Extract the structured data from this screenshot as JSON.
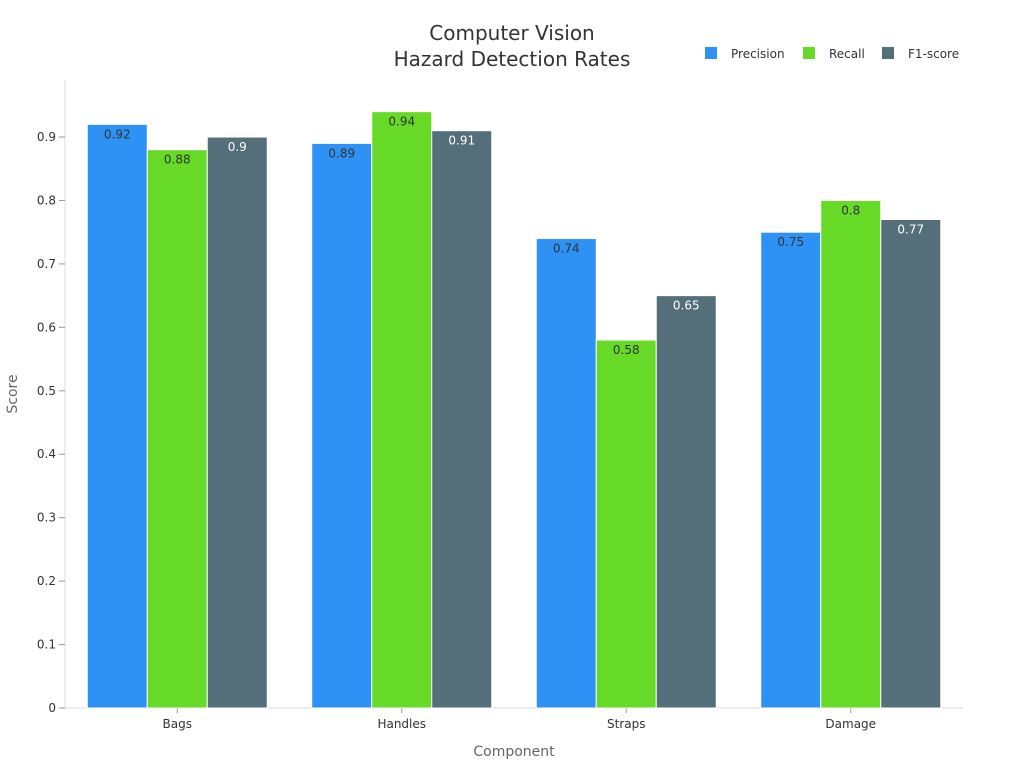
{
  "chart_data": {
    "type": "bar",
    "title": [
      "Computer Vision",
      "Hazard Detection Rates"
    ],
    "xlabel": "Component",
    "ylabel": "Score",
    "categories": [
      "Bags",
      "Handles",
      "Straps",
      "Damage"
    ],
    "series": [
      {
        "name": "Precision",
        "color": "#2e91f4",
        "label_color": "#333333",
        "values": [
          0.92,
          0.89,
          0.74,
          0.75
        ]
      },
      {
        "name": "Recall",
        "color": "#66da26",
        "label_color": "#333333",
        "values": [
          0.88,
          0.94,
          0.58,
          0.8
        ]
      },
      {
        "name": "F1-score",
        "color": "#546e7a",
        "label_color": "#ffffff",
        "values": [
          0.9,
          0.91,
          0.65,
          0.77
        ]
      }
    ],
    "ylim": [
      0,
      0.99
    ],
    "yticks": [
      "0",
      "0.1",
      "0.2",
      "0.3",
      "0.4",
      "0.5",
      "0.6",
      "0.7",
      "0.8",
      "0.9"
    ],
    "grid": false,
    "legend_position": "top-right"
  }
}
